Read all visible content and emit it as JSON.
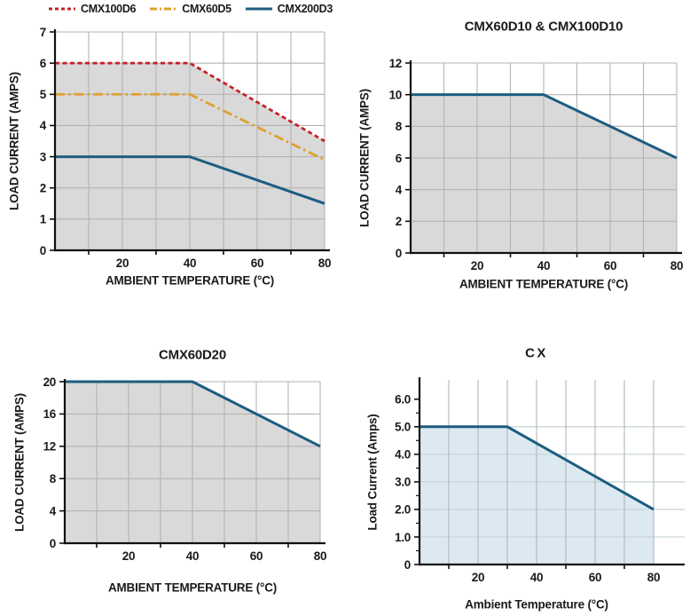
{
  "figure": {
    "description": "Load current derating curves vs ambient temperature for CMX and CX relay models",
    "text_color": "#1a1a1a",
    "axis_color": "#111111"
  },
  "chart_data": [
    {
      "type": "line",
      "title": "",
      "xlabel": "AMBIENT TEMPERATURE (°C)",
      "ylabel": "LOAD CURRENT (AMPS)",
      "xlim": [
        0,
        80
      ],
      "ylim": [
        0,
        7
      ],
      "xticks": [
        20,
        40,
        60,
        80
      ],
      "minor_xticks": [
        10,
        30,
        50,
        70
      ],
      "yticks": [
        {
          "v": 0,
          "label": "0"
        },
        {
          "v": 1,
          "label": "1"
        },
        {
          "v": 2,
          "label": "2"
        },
        {
          "v": 3,
          "label": "3"
        },
        {
          "v": 4,
          "label": "4"
        },
        {
          "v": 5,
          "label": "5"
        },
        {
          "v": 6,
          "label": "6"
        },
        {
          "v": 7,
          "label": "7"
        }
      ],
      "xgrid_step": 10,
      "grid": true,
      "grid_color": "#b3b3b3",
      "fill_series": 0,
      "fill_color": "#d9d9d9",
      "legend_position": "top",
      "series": [
        {
          "name": "CMX100D6",
          "color": "#c42127",
          "style": "dashed",
          "width": 2.8,
          "points": [
            [
              0,
              6
            ],
            [
              40,
              6
            ],
            [
              80,
              3.5
            ]
          ]
        },
        {
          "name": "CMX60D5",
          "color": "#dfa02f",
          "style": "dash-dot",
          "width": 2.8,
          "points": [
            [
              0,
              5
            ],
            [
              40,
              5
            ],
            [
              80,
              2.9
            ]
          ]
        },
        {
          "name": "CMX200D3",
          "color": "#1d5d80",
          "style": "solid",
          "width": 3,
          "points": [
            [
              0,
              3
            ],
            [
              40,
              3
            ],
            [
              80,
              1.5
            ]
          ]
        }
      ]
    },
    {
      "type": "line",
      "title": "CMX60D10 & CMX100D10",
      "xlabel": "AMBIENT TEMPERATURE (°C)",
      "ylabel": "LOAD CURRENT (AMPS)",
      "xlim": [
        0,
        80
      ],
      "ylim": [
        0,
        12
      ],
      "xticks": [
        20,
        40,
        60,
        80
      ],
      "minor_xticks": [
        10,
        30,
        50,
        70
      ],
      "yticks": [
        {
          "v": 0,
          "label": "0"
        },
        {
          "v": 2,
          "label": "2"
        },
        {
          "v": 4,
          "label": "4"
        },
        {
          "v": 6,
          "label": "6"
        },
        {
          "v": 8,
          "label": "8"
        },
        {
          "v": 10,
          "label": "10"
        },
        {
          "v": 12,
          "label": "12"
        }
      ],
      "xgrid_step": 10,
      "grid": true,
      "grid_color": "#b3b3b3",
      "fill_series": 0,
      "fill_color": "#d9d9d9",
      "series": [
        {
          "name": "CMX60D10 & CMX100D10",
          "color": "#1d5d80",
          "style": "solid",
          "width": 3,
          "points": [
            [
              0,
              10
            ],
            [
              40,
              10
            ],
            [
              80,
              6
            ]
          ]
        }
      ]
    },
    {
      "type": "line",
      "title": "CMX60D20",
      "xlabel": "AMBIENT TEMPERATURE (°C)",
      "ylabel": "LOAD CURRENT (AMPS)",
      "xlim": [
        0,
        80
      ],
      "ylim": [
        0,
        20
      ],
      "xticks": [
        20,
        40,
        60,
        80
      ],
      "minor_xticks": [
        10,
        30,
        50,
        70
      ],
      "yticks": [
        {
          "v": 0,
          "label": "0"
        },
        {
          "v": 4,
          "label": "4"
        },
        {
          "v": 8,
          "label": "8"
        },
        {
          "v": 12,
          "label": "12"
        },
        {
          "v": 16,
          "label": "16"
        },
        {
          "v": 20,
          "label": "20"
        }
      ],
      "xgrid_step": 10,
      "grid": true,
      "grid_color": "#b3b3b3",
      "fill_series": 0,
      "fill_color": "#d9d9d9",
      "series": [
        {
          "name": "CMX60D20",
          "color": "#1d5d80",
          "style": "solid",
          "width": 3,
          "points": [
            [
              0,
              20
            ],
            [
              40,
              20
            ],
            [
              80,
              12
            ]
          ]
        }
      ]
    },
    {
      "type": "line",
      "title": "CX",
      "xlabel": "Ambient Temperature (°C)",
      "ylabel": "Load Current (Amps)",
      "xlim": [
        0,
        80
      ],
      "ylim": [
        0,
        6.7
      ],
      "xticks": [
        20,
        40,
        60,
        80
      ],
      "minor_xticks": [
        10,
        30,
        50,
        70
      ],
      "yticks": [
        {
          "v": 0,
          "label": "0"
        },
        {
          "v": 1,
          "label": "1.0"
        },
        {
          "v": 2,
          "label": "2.0"
        },
        {
          "v": 3,
          "label": "3.0"
        },
        {
          "v": 4,
          "label": "4.0"
        },
        {
          "v": 5,
          "label": "5.0"
        },
        {
          "v": 6,
          "label": "6.0"
        }
      ],
      "minor_yticks": [
        0.5,
        1.5,
        2.5,
        3.5,
        4.5,
        5.5
      ],
      "xgrid_step": 10,
      "grid": true,
      "grid_color": "#b0b6ba",
      "hgrid_color": "#c6d3d9",
      "light_h_max": 5,
      "fill_series": 0,
      "fill_color": "#dde9f1",
      "series": [
        {
          "name": "CX",
          "color": "#1d5d80",
          "style": "solid",
          "width": 3,
          "points": [
            [
              0,
              5
            ],
            [
              30,
              5
            ],
            [
              80,
              2
            ]
          ]
        }
      ]
    }
  ]
}
